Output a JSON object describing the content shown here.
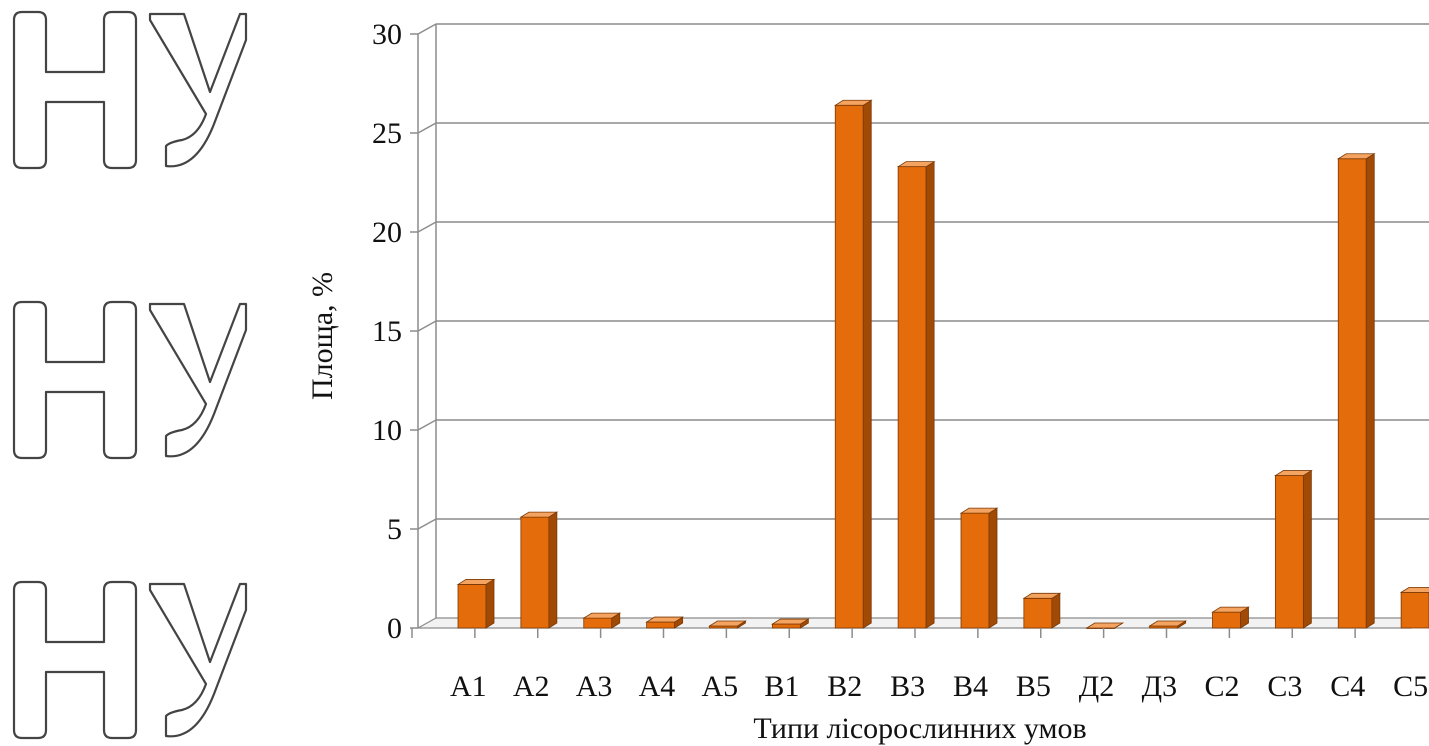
{
  "chart_data": {
    "type": "bar",
    "title": "",
    "xlabel": "Типи лісорослинних умов",
    "ylabel": "Площа, %",
    "ylim": [
      0,
      30
    ],
    "yticks": [
      "0",
      "5",
      "10",
      "15",
      "20",
      "25",
      "30"
    ],
    "categories": [
      "A1",
      "A2",
      "A3",
      "A4",
      "A5",
      "B1",
      "B2",
      "B3",
      "B4",
      "B5",
      "Д2",
      "Д3",
      "C2",
      "C3",
      "C4",
      "C5"
    ],
    "values": [
      2.2,
      5.6,
      0.5,
      0.3,
      0.1,
      0.2,
      26.4,
      23.3,
      5.8,
      1.5,
      0.0,
      0.1,
      0.8,
      7.7,
      23.7,
      1.8
    ],
    "grid": true,
    "legend": "none",
    "bar_color": "#e46c0a",
    "bar_side_color": "#a04a06",
    "bar_top_color": "#f4a360"
  },
  "watermark": {
    "text": "НУ",
    "repeat": 3
  }
}
